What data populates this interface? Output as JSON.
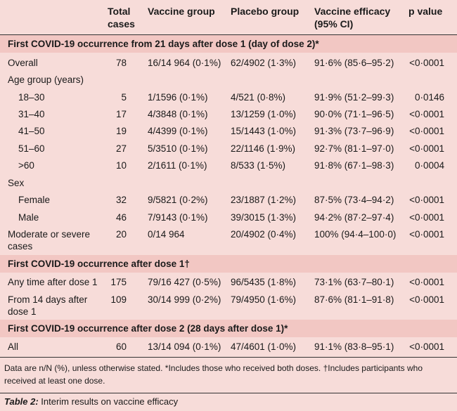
{
  "header": {
    "total": "Total cases",
    "vaccine": "Vaccine group",
    "placebo": "Placebo group",
    "efficacy": "Vaccine efficacy (95% CI)",
    "pvalue": "p value"
  },
  "sections": [
    {
      "title": "First COVID-19 occurrence from 21 days after dose 1 (day of dose 2)*"
    },
    {
      "title": "First COVID-19 occurrence after dose 1†"
    },
    {
      "title": "First COVID-19 occurrence after dose 2 (28 days after dose 1)*"
    }
  ],
  "rows": [
    {
      "label": "Overall",
      "total": "78",
      "vaccine": "16/14 964 (0·1%)",
      "placebo": "62/4902 (1·3%)",
      "efficacy": "91·6% (85·6–95·2)",
      "p": "<0·0001"
    },
    {
      "label": "Age group (years)",
      "total": "",
      "vaccine": "",
      "placebo": "",
      "efficacy": "",
      "p": ""
    },
    {
      "label": "18–30",
      "total": "5",
      "vaccine": "1/1596 (0·1%)",
      "placebo": "4/521 (0·8%)",
      "efficacy": "91·9% (51·2–99·3)",
      "p": "0·0146"
    },
    {
      "label": "31–40",
      "total": "17",
      "vaccine": "4/3848 (0·1%)",
      "placebo": "13/1259 (1·0%)",
      "efficacy": "90·0% (71·1–96·5)",
      "p": "<0·0001"
    },
    {
      "label": "41–50",
      "total": "19",
      "vaccine": "4/4399 (0·1%)",
      "placebo": "15/1443 (1·0%)",
      "efficacy": "91·3% (73·7–96·9)",
      "p": "<0·0001"
    },
    {
      "label": "51–60",
      "total": "27",
      "vaccine": "5/3510 (0·1%)",
      "placebo": "22/1146 (1·9%)",
      "efficacy": "92·7% (81·1–97·0)",
      "p": "<0·0001"
    },
    {
      "label": ">60",
      "total": "10",
      "vaccine": "2/1611 (0·1%)",
      "placebo": "8/533 (1·5%)",
      "efficacy": "91·8% (67·1–98·3)",
      "p": "0·0004"
    },
    {
      "label": "Sex",
      "total": "",
      "vaccine": "",
      "placebo": "",
      "efficacy": "",
      "p": ""
    },
    {
      "label": "Female",
      "total": "32",
      "vaccine": "9/5821 (0·2%)",
      "placebo": "23/1887 (1·2%)",
      "efficacy": "87·5% (73·4–94·2)",
      "p": "<0·0001"
    },
    {
      "label": "Male",
      "total": "46",
      "vaccine": "7/9143 (0·1%)",
      "placebo": "39/3015 (1·3%)",
      "efficacy": "94·2% (87·2–97·4)",
      "p": "<0·0001"
    },
    {
      "label": "Moderate or severe cases",
      "total": "20",
      "vaccine": "0/14 964",
      "placebo": "20/4902 (0·4%)",
      "efficacy": "100% (94·4–100·0)",
      "p": "<0·0001"
    },
    {
      "label": "Any time after dose 1",
      "total": "175",
      "vaccine": "79/16 427 (0·5%)",
      "placebo": "96/5435 (1·8%)",
      "efficacy": "73·1% (63·7–80·1)",
      "p": "<0·0001"
    },
    {
      "label": "From 14 days after dose 1",
      "total": "109",
      "vaccine": "30/14 999 (0·2%)",
      "placebo": "79/4950 (1·6%)",
      "efficacy": "87·6% (81·1–91·8)",
      "p": "<0·0001"
    },
    {
      "label": "All",
      "total": "60",
      "vaccine": "13/14 094 (0·1%)",
      "placebo": "47/4601 (1·0%)",
      "efficacy": "91·1% (83·8–95·1)",
      "p": "<0·0001"
    }
  ],
  "footnote": "Data are n/N (%), unless otherwise stated. *Includes those who received both doses. †Includes participants who received at least one dose.",
  "caption": {
    "label": "Table 2:",
    "text": " Interim results on vaccine efficacy"
  }
}
